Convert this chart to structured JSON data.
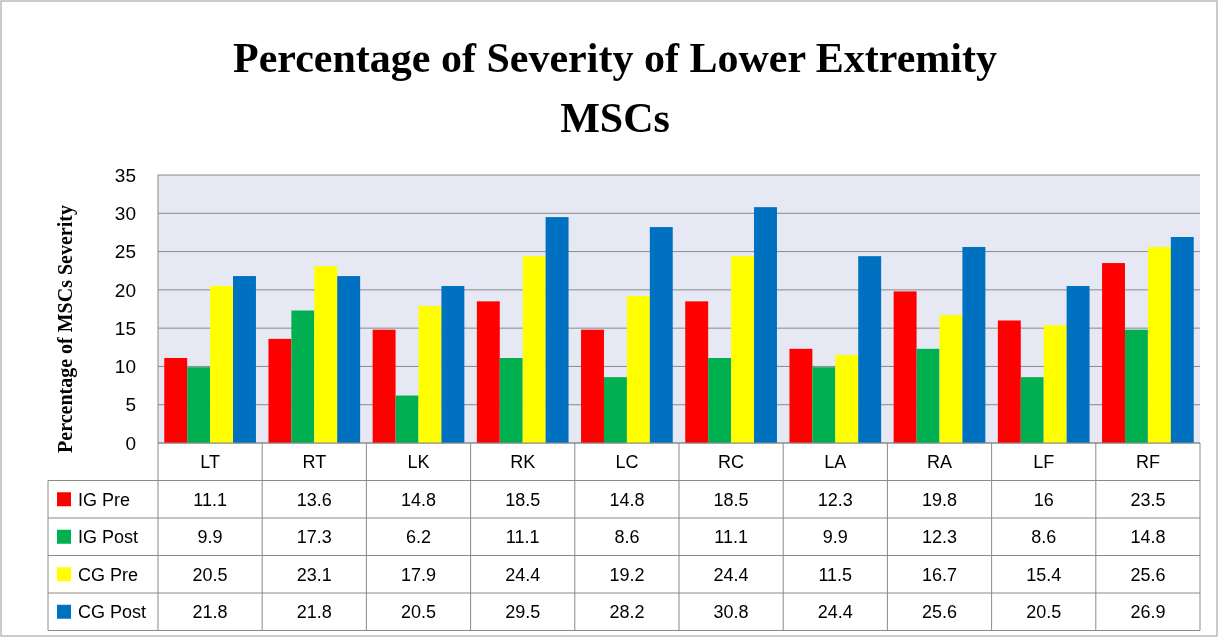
{
  "chart_data": {
    "type": "bar",
    "title": "Percentage of Severity of Lower Extremity MSCs",
    "ylabel": "Percentage of MSCs Severity",
    "categories": [
      "LT",
      "RT",
      "LK",
      "RK",
      "LC",
      "RC",
      "LA",
      "RA",
      "LF",
      "RF"
    ],
    "series": [
      {
        "name": "IG Pre",
        "color": "#ff0000",
        "values": [
          11.1,
          13.6,
          14.8,
          18.5,
          14.8,
          18.5,
          12.3,
          19.8,
          16,
          23.5
        ]
      },
      {
        "name": "IG Post",
        "color": "#00b050",
        "values": [
          9.9,
          17.3,
          6.2,
          11.1,
          8.6,
          11.1,
          9.9,
          12.3,
          8.6,
          14.8
        ]
      },
      {
        "name": "CG Pre",
        "color": "#ffff00",
        "values": [
          20.5,
          23.1,
          17.9,
          24.4,
          19.2,
          24.4,
          11.5,
          16.7,
          15.4,
          25.6
        ]
      },
      {
        "name": "CG Post",
        "color": "#0070c0",
        "values": [
          21.8,
          21.8,
          20.5,
          29.5,
          28.2,
          30.8,
          24.4,
          25.6,
          20.5,
          26.9
        ]
      }
    ],
    "ylim": [
      0,
      35
    ],
    "yticks": [
      0,
      5,
      10,
      15,
      20,
      25,
      30,
      35
    ],
    "grid": "y",
    "legend": "bottom",
    "data_labels": true
  }
}
